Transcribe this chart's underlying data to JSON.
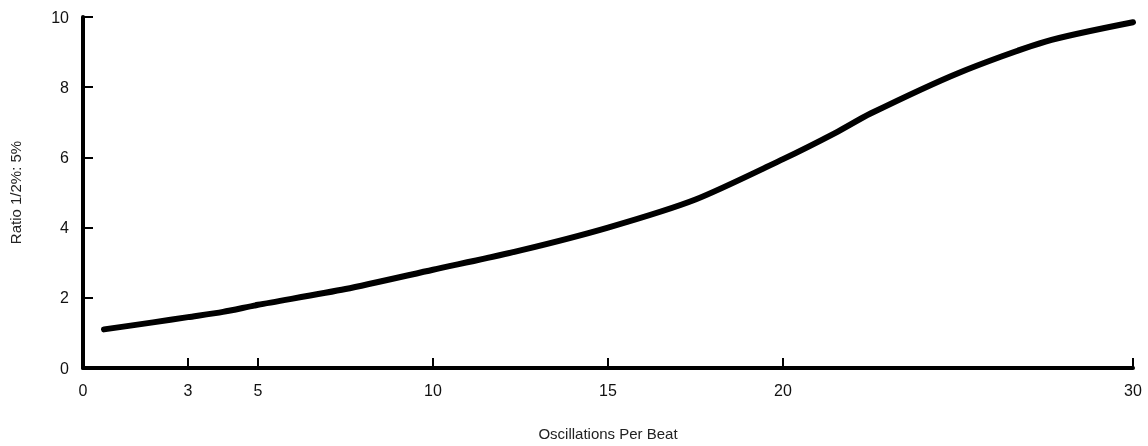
{
  "chart_data": {
    "type": "line",
    "xlabel": "Oscillations Per Beat",
    "ylabel": "Ratio 1/2%: 5%",
    "x": [
      0.6,
      2,
      3,
      4,
      5,
      7.5,
      10,
      12.5,
      15,
      17.5,
      20,
      21.5,
      22.5,
      25,
      27.5,
      30
    ],
    "series": [
      {
        "color": "#000000",
        "values": [
          1.1,
          1.3,
          1.45,
          1.6,
          1.8,
          2.25,
          2.8,
          3.35,
          4.0,
          4.8,
          5.95,
          6.7,
          7.25,
          8.4,
          9.3,
          9.85
        ]
      }
    ],
    "xlim": [
      0,
      30
    ],
    "xticks": [
      0,
      3,
      5,
      10,
      15,
      20,
      30
    ],
    "ylim": [
      0,
      10
    ],
    "yticks": [
      0,
      2,
      4,
      6,
      8,
      10
    ],
    "grid": false,
    "marker": "none",
    "line_style": "solid"
  }
}
